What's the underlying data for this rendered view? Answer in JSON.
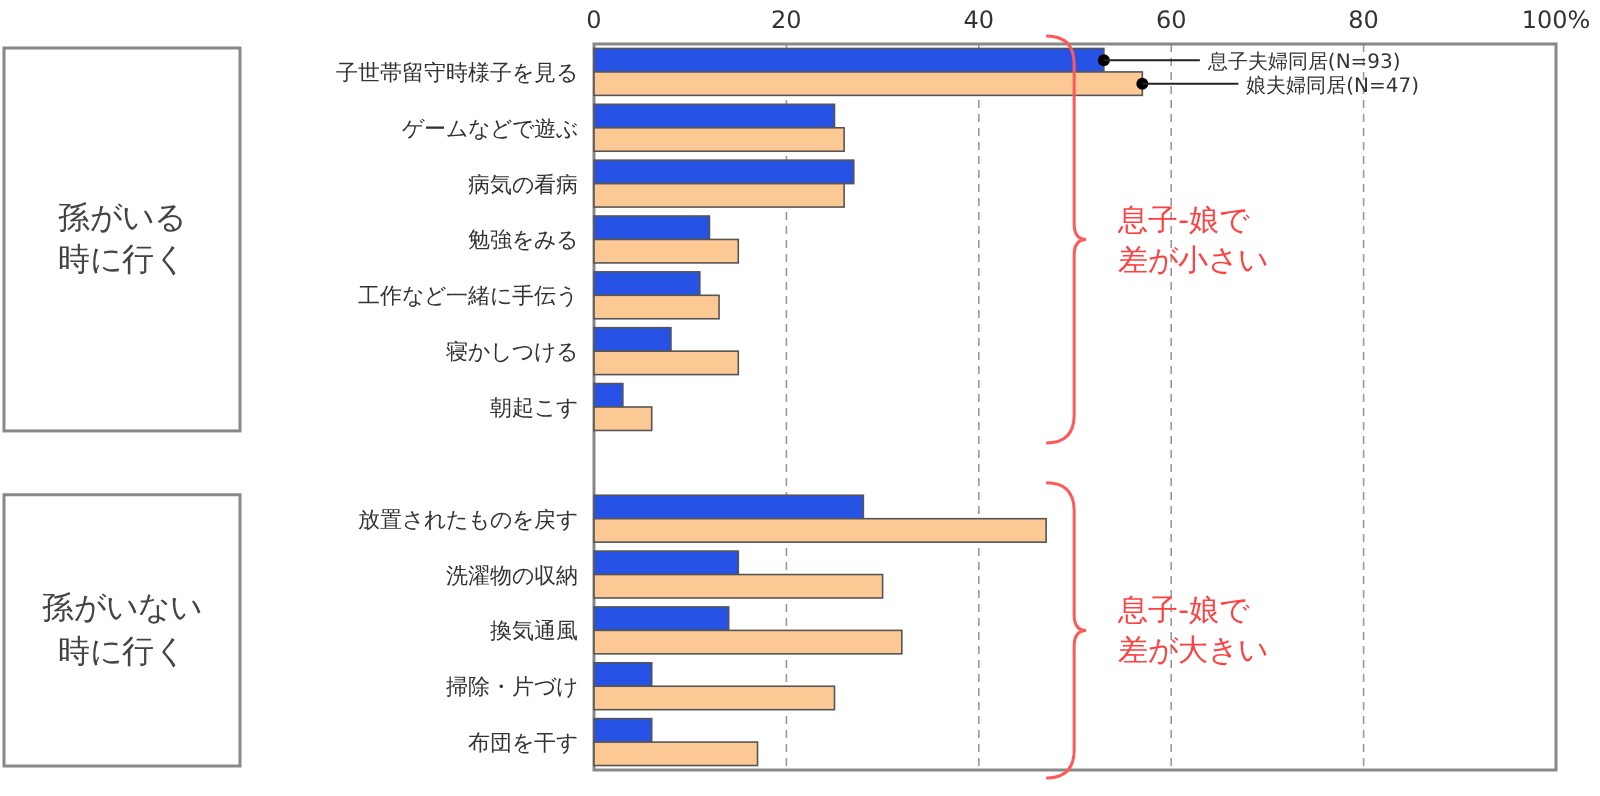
{
  "chart_data": {
    "type": "bar",
    "orientation": "horizontal",
    "categories": [
      "子世帯留守時様子を見る",
      "ゲームなどで遊ぶ",
      "病気の看病",
      "勉強をみる",
      "工作など一緒に手伝う",
      "寝かしつける",
      "朝起こす",
      null,
      "放置されたものを戻す",
      "洗濯物の収納",
      "換気通風",
      "掃除・片づけ",
      "布団を干す"
    ],
    "series": [
      {
        "name": "息子夫婦同居(N=93)",
        "color": "#2652e6",
        "values": [
          53,
          25,
          27,
          12,
          11,
          8,
          3,
          null,
          28,
          15,
          14,
          6,
          6
        ]
      },
      {
        "name": "娘夫婦同居(N=47)",
        "color": "#fcc894",
        "values": [
          57,
          26,
          26,
          15,
          13,
          15,
          6,
          null,
          47,
          30,
          32,
          25,
          17
        ]
      }
    ],
    "xlim": [
      0,
      100
    ],
    "xticks": [
      0,
      20,
      40,
      60,
      80,
      {
        "value": 100,
        "label": "100%"
      }
    ],
    "grid": "x",
    "legend": "top right",
    "annotations": [
      "孫がいる時に行く",
      "孫がいない時に行く",
      "息子-娘で差が小さい",
      "息子-娘で差が大きい"
    ]
  }
}
